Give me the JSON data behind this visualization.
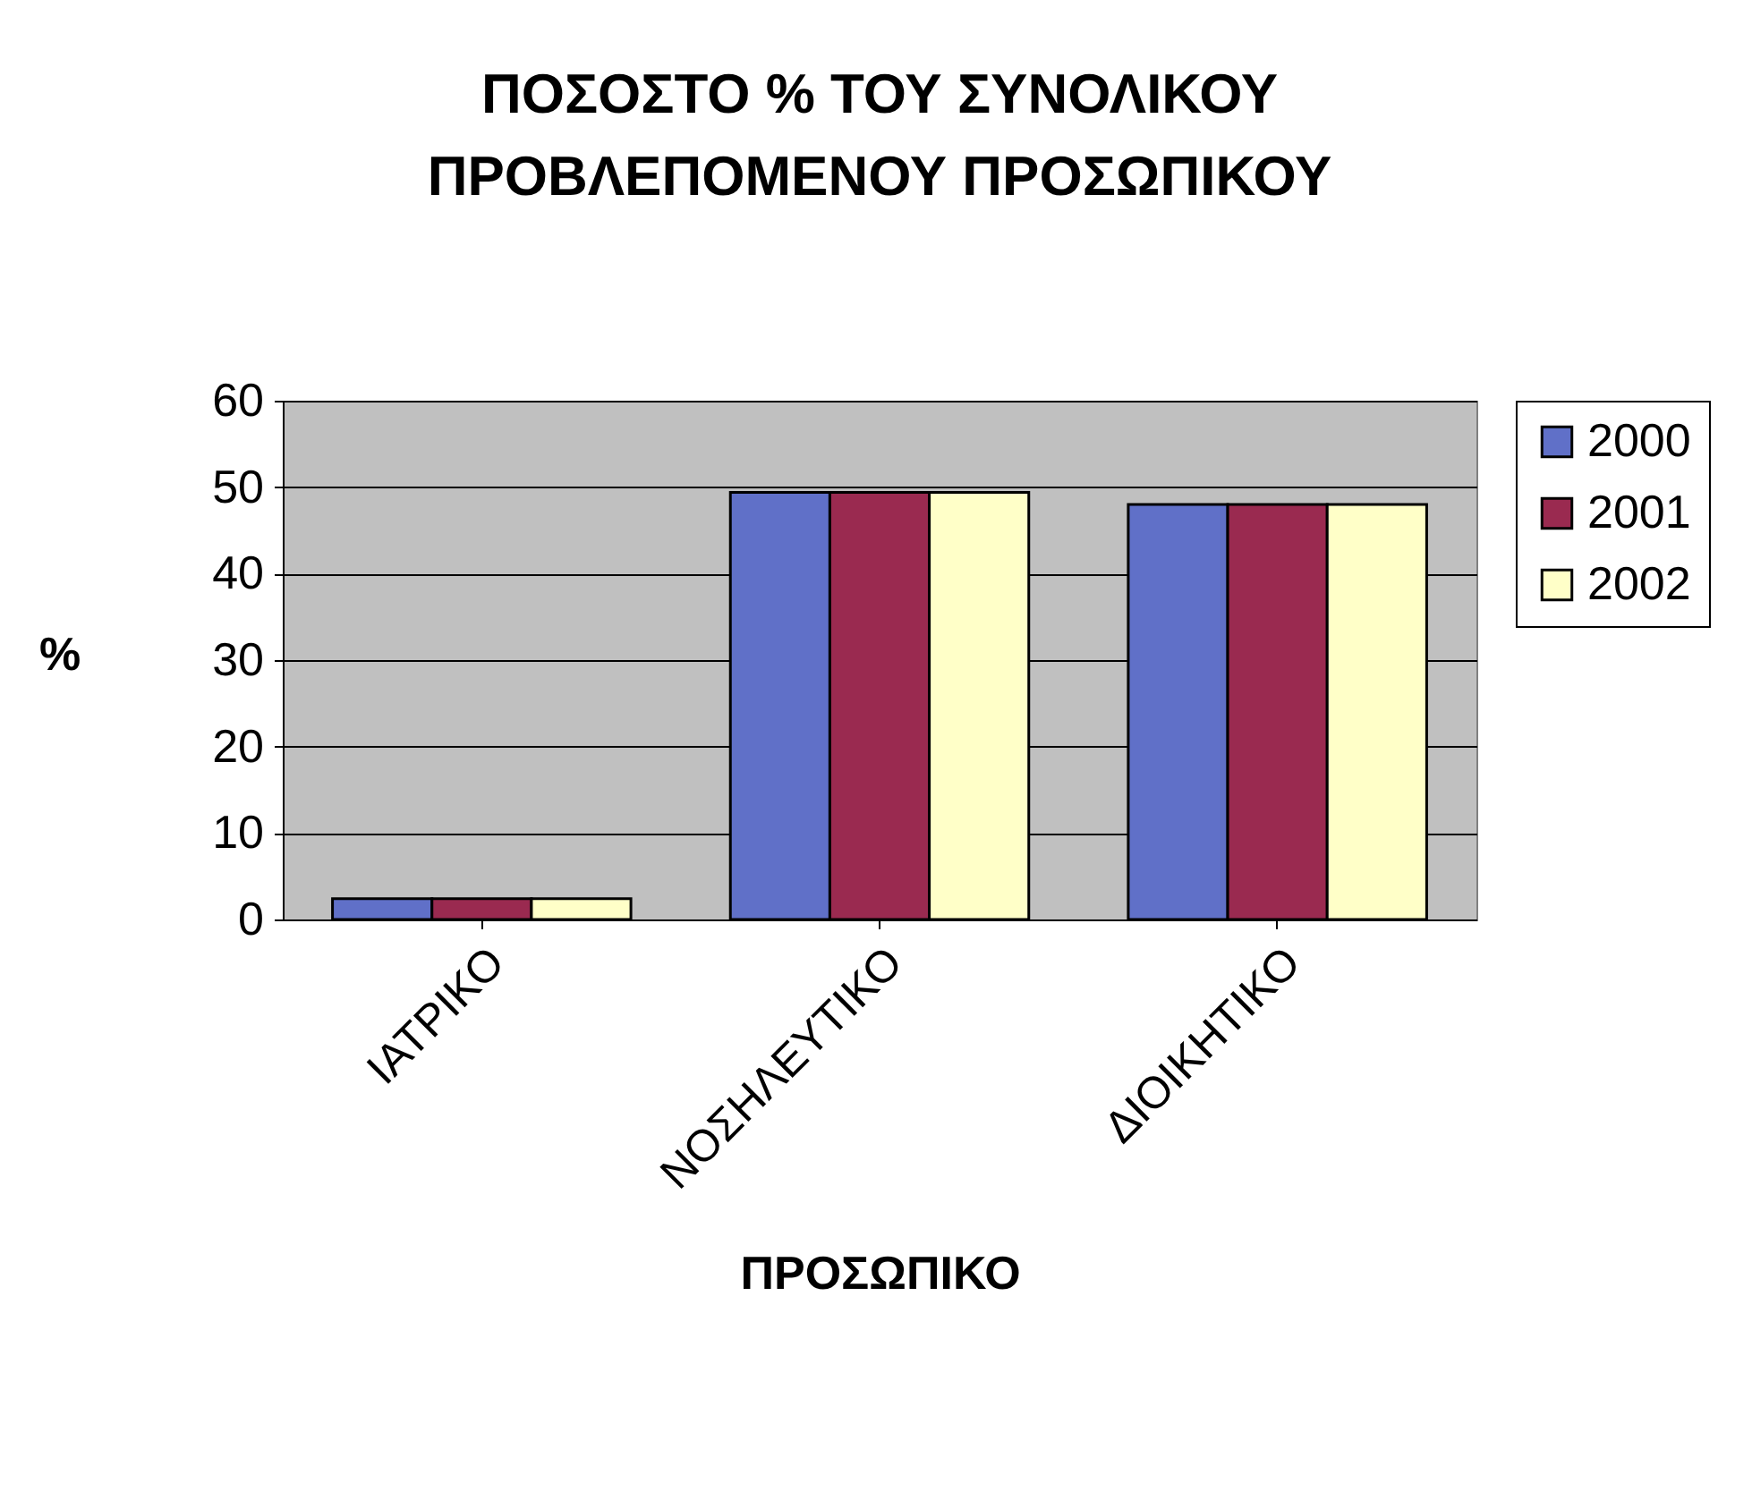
{
  "chart_data": {
    "type": "bar",
    "title": [
      "ΠΟΣΟΣΤΟ % ΤΟΥ ΣΥΝΟΛΙΚΟΥ",
      "ΠΡΟΒΛΕΠΟΜΕΝΟΥ ΠΡΟΣΩΠΙΚΟΥ"
    ],
    "xlabel": "ΠΡΟΣΩΠΙΚΟ",
    "ylabel": "%",
    "categories": [
      "ΙΑΤΡΙΚΟ",
      "ΝΟΣΗΛΕΥΤΙΚΟ",
      "ΔΙΟΙΚΗΤΙΚΟ"
    ],
    "series": [
      {
        "name": "2000",
        "color": "#6070c8",
        "values": [
          2.4,
          49.4,
          48.0
        ]
      },
      {
        "name": "2001",
        "color": "#9a2a50",
        "values": [
          2.4,
          49.4,
          48.0
        ]
      },
      {
        "name": "2002",
        "color": "#ffffc8",
        "values": [
          2.4,
          49.4,
          48.0
        ]
      }
    ],
    "ylim": [
      0,
      60
    ],
    "yticks": [
      0,
      10,
      20,
      30,
      40,
      50,
      60
    ],
    "grid": "y",
    "legend": "right"
  }
}
